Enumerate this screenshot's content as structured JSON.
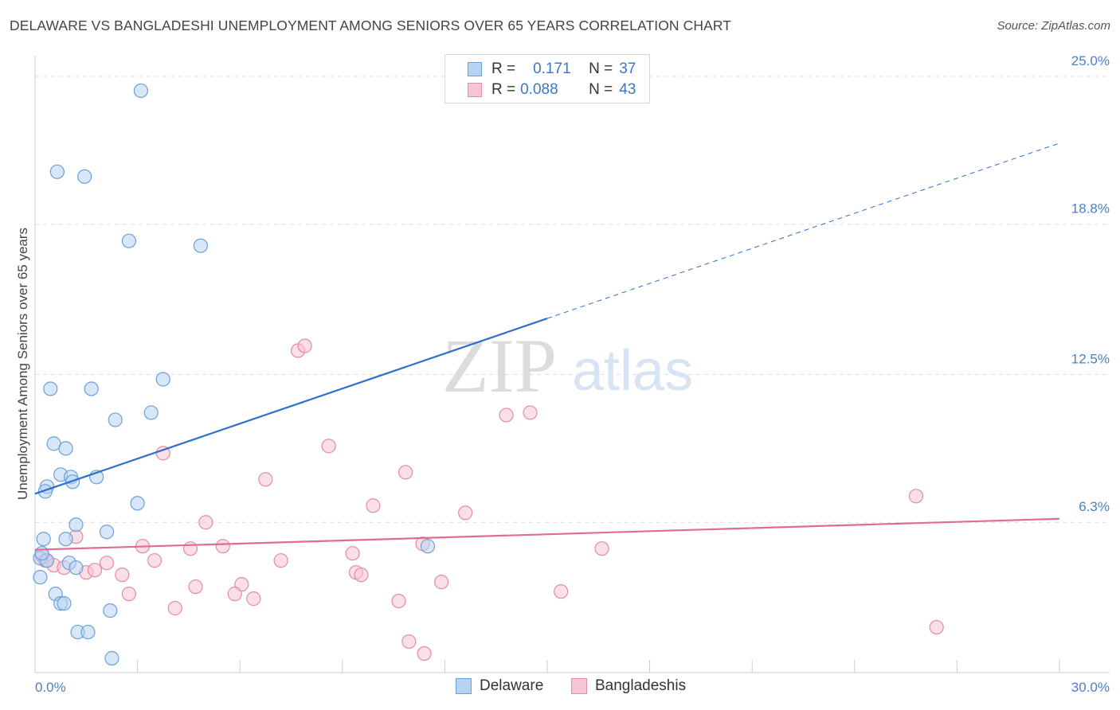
{
  "title": "DELAWARE VS BANGLADESHI UNEMPLOYMENT AMONG SENIORS OVER 65 YEARS CORRELATION CHART",
  "source": "Source: ZipAtlas.com",
  "watermark": {
    "zip": "ZIP",
    "atlas": "atlas"
  },
  "legend": {
    "delaware": {
      "r_label": "R =",
      "r_value": "0.171",
      "n_label": "N =",
      "n_value": "37"
    },
    "bangladeshis": {
      "r_label": "R =",
      "r_value": "0.088",
      "n_label": "N =",
      "n_value": "43"
    }
  },
  "colors": {
    "delaware_fill": "#b7d3f2",
    "delaware_stroke": "#6d9fd8",
    "delaware_line": "#2c6fce",
    "bangladeshis_fill": "#f7c4d4",
    "bangladeshis_stroke": "#e58aa8",
    "bangladeshis_line": "#e06b95"
  },
  "chart_data": {
    "type": "scatter",
    "title": "DELAWARE VS BANGLADESHI UNEMPLOYMENT AMONG SENIORS OVER 65 YEARS CORRELATION CHART",
    "xlabel": "",
    "ylabel": "Unemployment Among Seniors over 65 years",
    "xlim": [
      0,
      30
    ],
    "ylim": [
      0,
      25.6
    ],
    "x_tick_labels": {
      "min": "0.0%",
      "max": "30.0%"
    },
    "y_ticks": [
      {
        "value": 6.3,
        "label": "6.3%"
      },
      {
        "value": 12.5,
        "label": "12.5%"
      },
      {
        "value": 18.8,
        "label": "18.8%"
      },
      {
        "value": 25.0,
        "label": "25.0%"
      }
    ],
    "grid": true,
    "series": [
      {
        "name": "Delaware",
        "points": [
          [
            3.1,
            24.4
          ],
          [
            0.65,
            21.0
          ],
          [
            1.45,
            20.8
          ],
          [
            2.75,
            18.1
          ],
          [
            4.85,
            17.9
          ],
          [
            3.75,
            12.3
          ],
          [
            0.45,
            11.9
          ],
          [
            1.65,
            11.9
          ],
          [
            2.35,
            10.6
          ],
          [
            3.4,
            10.9
          ],
          [
            0.55,
            9.6
          ],
          [
            0.9,
            9.4
          ],
          [
            0.75,
            8.3
          ],
          [
            1.05,
            8.2
          ],
          [
            1.1,
            8.0
          ],
          [
            1.8,
            8.2
          ],
          [
            0.35,
            7.8
          ],
          [
            0.3,
            7.6
          ],
          [
            3.0,
            7.1
          ],
          [
            1.2,
            6.2
          ],
          [
            2.1,
            5.9
          ],
          [
            0.25,
            5.6
          ],
          [
            0.9,
            5.6
          ],
          [
            0.15,
            4.8
          ],
          [
            0.35,
            4.7
          ],
          [
            1.0,
            4.6
          ],
          [
            1.2,
            4.4
          ],
          [
            0.15,
            4.0
          ],
          [
            0.6,
            3.3
          ],
          [
            0.75,
            2.9
          ],
          [
            0.85,
            2.9
          ],
          [
            2.2,
            2.6
          ],
          [
            1.25,
            1.7
          ],
          [
            1.55,
            1.7
          ],
          [
            2.25,
            0.6
          ],
          [
            11.5,
            5.3
          ],
          [
            0.2,
            5.0
          ]
        ]
      },
      {
        "name": "Bangladeshis",
        "points": [
          [
            7.7,
            13.5
          ],
          [
            7.9,
            13.7
          ],
          [
            13.8,
            10.8
          ],
          [
            14.5,
            10.9
          ],
          [
            8.6,
            9.5
          ],
          [
            3.75,
            9.2
          ],
          [
            10.85,
            8.4
          ],
          [
            6.75,
            8.1
          ],
          [
            25.8,
            7.4
          ],
          [
            9.9,
            7.0
          ],
          [
            12.6,
            6.7
          ],
          [
            5.0,
            6.3
          ],
          [
            1.2,
            5.7
          ],
          [
            11.35,
            5.4
          ],
          [
            3.15,
            5.3
          ],
          [
            5.5,
            5.3
          ],
          [
            4.55,
            5.2
          ],
          [
            16.6,
            5.2
          ],
          [
            9.3,
            5.0
          ],
          [
            0.2,
            4.9
          ],
          [
            0.3,
            4.7
          ],
          [
            0.55,
            4.5
          ],
          [
            0.85,
            4.4
          ],
          [
            2.1,
            4.6
          ],
          [
            7.2,
            4.7
          ],
          [
            3.5,
            4.7
          ],
          [
            1.5,
            4.2
          ],
          [
            1.75,
            4.3
          ],
          [
            2.55,
            4.1
          ],
          [
            9.4,
            4.2
          ],
          [
            9.55,
            4.1
          ],
          [
            4.7,
            3.6
          ],
          [
            6.05,
            3.7
          ],
          [
            11.9,
            3.8
          ],
          [
            2.75,
            3.3
          ],
          [
            5.85,
            3.3
          ],
          [
            6.4,
            3.1
          ],
          [
            10.65,
            3.0
          ],
          [
            15.4,
            3.4
          ],
          [
            4.1,
            2.7
          ],
          [
            26.4,
            1.9
          ],
          [
            10.95,
            1.3
          ],
          [
            11.4,
            0.8
          ]
        ]
      }
    ],
    "trend_lines": [
      {
        "series": "Delaware",
        "x0": 0.0,
        "y0": 7.5,
        "x1": 15.0,
        "y1": 14.85,
        "dash_to_x": 30.0,
        "dash_to_y": 22.2
      },
      {
        "series": "Bangladeshis",
        "x0": 0.0,
        "y0": 5.15,
        "x1": 30.0,
        "y1": 6.45
      }
    ]
  }
}
